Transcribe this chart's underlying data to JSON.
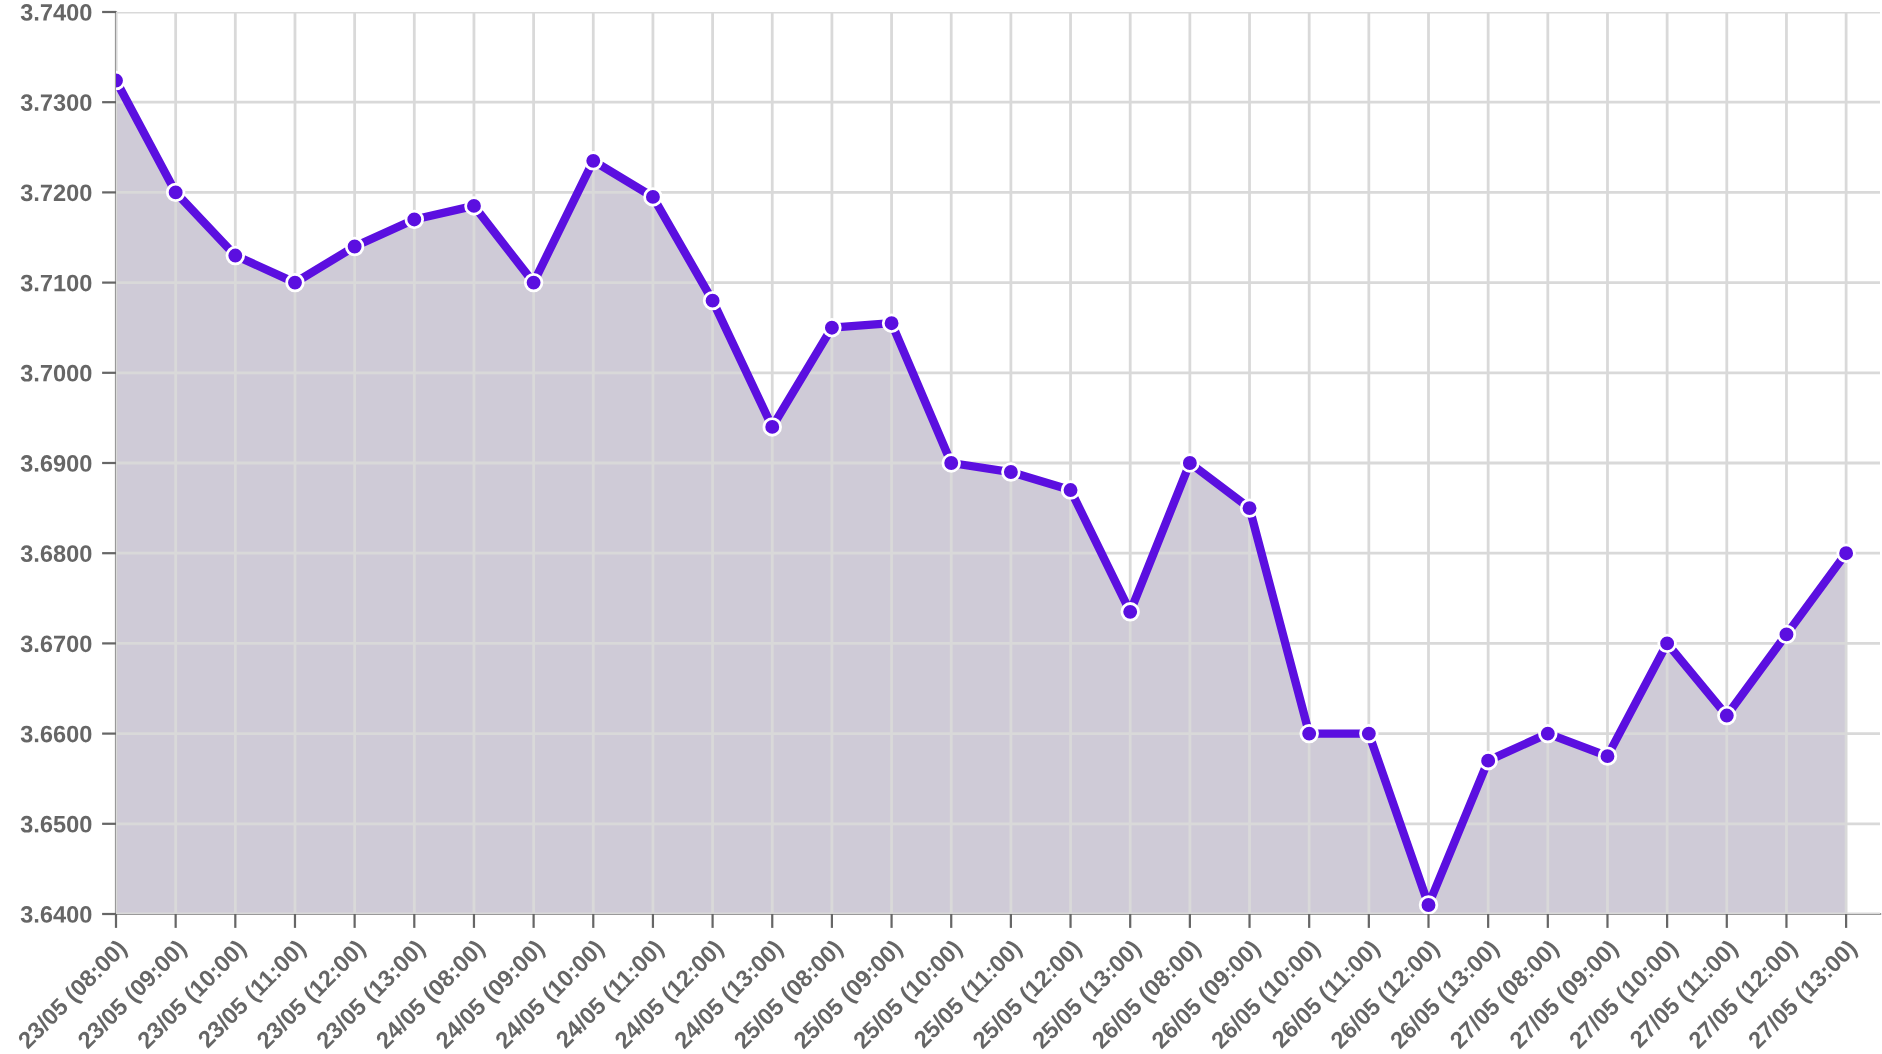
{
  "chart_data": {
    "type": "area",
    "categories": [
      "23/05 (08:00)",
      "23/05 (09:00)",
      "23/05 (10:00)",
      "23/05 (11:00)",
      "23/05 (12:00)",
      "23/05 (13:00)",
      "24/05 (08:00)",
      "24/05 (09:00)",
      "24/05 (10:00)",
      "24/05 (11:00)",
      "24/05 (12:00)",
      "24/05 (13:00)",
      "25/05 (08:00)",
      "25/05 (09:00)",
      "25/05 (10:00)",
      "25/05 (11:00)",
      "25/05 (12:00)",
      "25/05 (13:00)",
      "26/05 (08:00)",
      "26/05 (09:00)",
      "26/05 (10:00)",
      "26/05 (11:00)",
      "26/05 (12:00)",
      "26/05 (13:00)",
      "27/05 (08:00)",
      "27/05 (09:00)",
      "27/05 (10:00)",
      "27/05 (11:00)",
      "27/05 (12:00)",
      "27/05 (13:00)"
    ],
    "series": [
      {
        "color": "#5b0fe0",
        "values": [
          3.7324,
          3.72,
          3.713,
          3.71,
          3.714,
          3.717,
          3.7185,
          3.71,
          3.7235,
          3.7195,
          3.708,
          3.694,
          3.705,
          3.7055,
          3.69,
          3.689,
          3.687,
          3.6735,
          3.69,
          3.685,
          3.66,
          3.66,
          3.641,
          3.657,
          3.66,
          3.6575,
          3.67,
          3.662,
          3.671,
          3.68
        ]
      }
    ],
    "ylim": [
      3.64,
      3.74
    ],
    "yticks": [
      {
        "value": 3.64,
        "label": "3.6400"
      },
      {
        "value": 3.65,
        "label": "3.6500"
      },
      {
        "value": 3.66,
        "label": "3.6600"
      },
      {
        "value": 3.67,
        "label": "3.6700"
      },
      {
        "value": 3.68,
        "label": "3.6800"
      },
      {
        "value": 3.69,
        "label": "3.6900"
      },
      {
        "value": 3.7,
        "label": "3.7000"
      },
      {
        "value": 3.71,
        "label": "3.7100"
      },
      {
        "value": 3.72,
        "label": "3.7200"
      },
      {
        "value": 3.73,
        "label": "3.7300"
      },
      {
        "value": 3.74,
        "label": "3.7400"
      }
    ],
    "grid": true,
    "marker": "circle",
    "line_style": "solid"
  }
}
